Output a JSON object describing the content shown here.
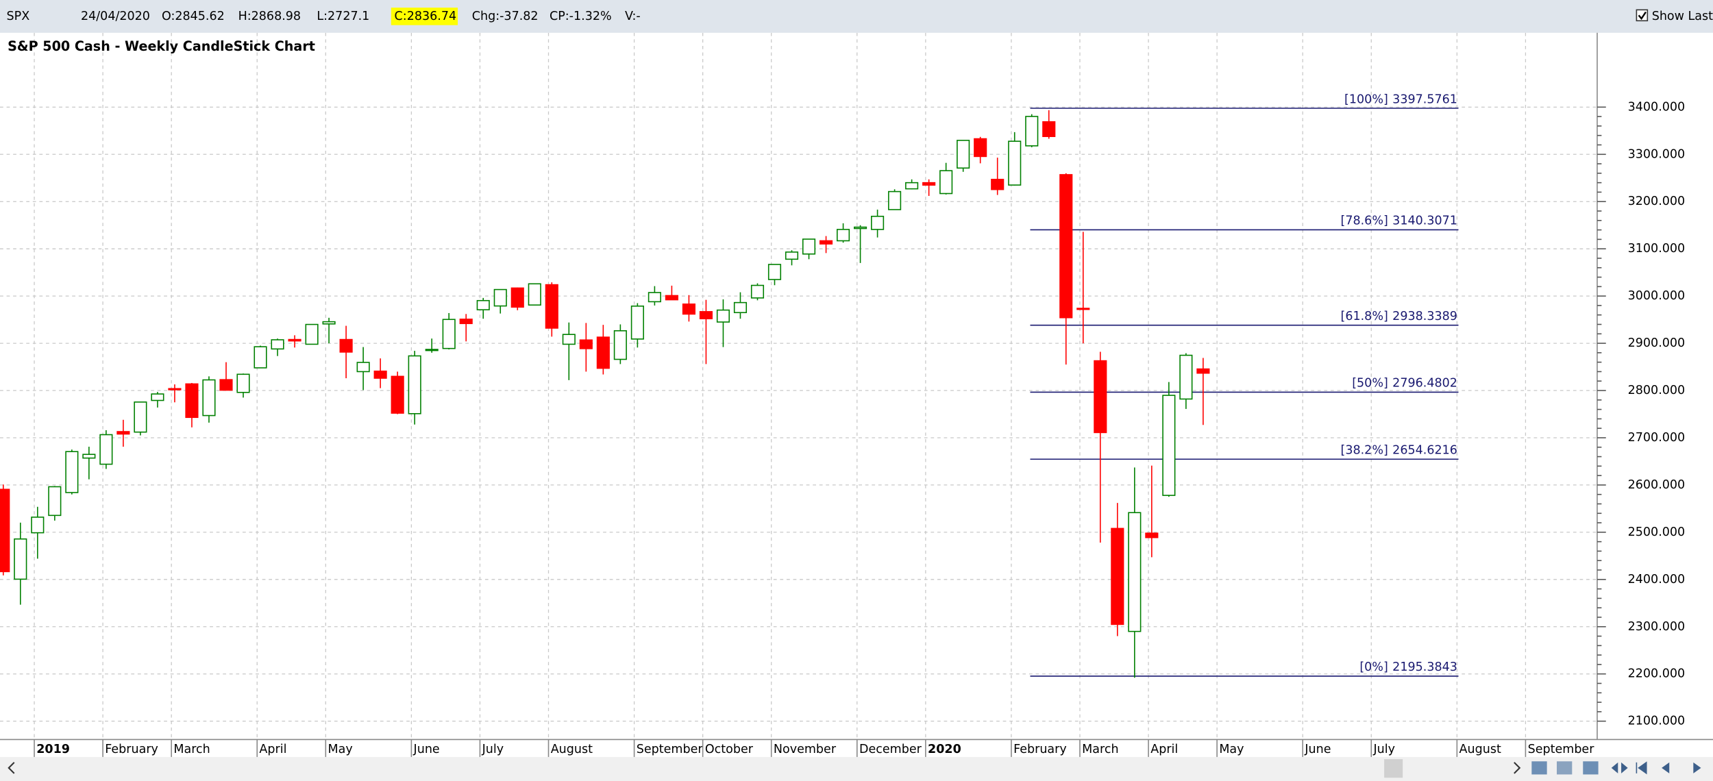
{
  "header": {
    "items": [
      "SPX",
      "24/04/2020",
      "O:2845.62",
      "H:2868.98",
      "L:2727.1",
      "C:2836.74",
      "Chg:-37.82",
      "CP:-1.32%",
      "V:-"
    ],
    "show_last": "Show Last"
  },
  "chart_data": {
    "type": "candlestick",
    "title": "S&P 500 Cash - Weekly CandleStick Chart",
    "categories": [
      null,
      null,
      "2019",
      null,
      null,
      null,
      "February",
      null,
      null,
      null,
      "March",
      null,
      null,
      null,
      null,
      "April",
      null,
      null,
      null,
      "May",
      null,
      null,
      null,
      null,
      "June",
      null,
      null,
      null,
      "July",
      null,
      null,
      null,
      "August",
      null,
      null,
      null,
      null,
      "September",
      null,
      null,
      null,
      "October",
      null,
      null,
      null,
      "November",
      null,
      null,
      null,
      null,
      "December",
      null,
      null,
      null,
      "2020",
      null,
      null,
      null,
      null,
      "February",
      null,
      null,
      null,
      "March",
      null,
      null,
      null,
      "April",
      null,
      null,
      null,
      "May",
      null,
      null,
      null,
      null,
      "June",
      null,
      null,
      null,
      "July",
      null,
      null,
      null,
      null,
      "August",
      null,
      null,
      null,
      "September",
      null,
      null,
      null,
      null
    ],
    "open": [
      2590.8,
      2400.6,
      2498.9,
      2535.6,
      2584,
      2657,
      2644,
      2713,
      2712,
      2779,
      2804,
      2814,
      2747,
      2823,
      2796,
      2848,
      2888,
      2908,
      2898,
      2941,
      2908,
      2840,
      2841,
      2830,
      2751,
      2885,
      2889,
      2951,
      2971,
      2979,
      3017,
      2981,
      3024,
      2898,
      2907,
      2913,
      2866,
      2909,
      2988,
      3001,
      2983,
      2967,
      2945,
      2965,
      2996,
      3035,
      3078,
      3089,
      3117,
      3117,
      3143,
      3141,
      3183,
      3227,
      3240,
      3217,
      3271,
      3333,
      3247,
      3235,
      3318,
      3369,
      3257,
      2974,
      2863,
      2508,
      2290,
      2498,
      2578,
      2782,
      2845.62,
      null,
      null,
      null,
      null,
      null,
      null,
      null,
      null,
      null,
      null,
      null,
      null,
      null,
      null,
      null,
      null,
      null,
      null,
      null,
      null,
      null,
      null,
      null
    ],
    "high": [
      2601,
      2520.3,
      2553.8,
      2597.8,
      2675,
      2681,
      2716,
      2738,
      2776,
      2797,
      2813,
      2816,
      2830,
      2860,
      2836,
      2895,
      2910,
      2917,
      2940,
      2954,
      2937,
      2892,
      2868,
      2840,
      2884,
      2910,
      2964,
      2962,
      2996,
      3014,
      3018,
      3027,
      3029,
      2944,
      2943,
      2939,
      2940,
      2985,
      3021,
      3022,
      3002,
      2992,
      2993,
      3008,
      3027,
      3067,
      3097,
      3121,
      3127,
      3154,
      3150,
      3183,
      3226,
      3247,
      3247,
      3282,
      3330,
      3337,
      3293,
      3347,
      3385,
      3393.5,
      3260,
      3136,
      2882,
      2562,
      2637,
      2641,
      2818,
      2879,
      2868.98,
      null,
      null,
      null,
      null,
      null,
      null,
      null,
      null,
      null,
      null,
      null,
      null,
      null,
      null,
      null,
      null,
      null,
      null,
      null,
      null,
      null,
      null,
      null
    ],
    "low": [
      2408.6,
      2346.6,
      2444,
      2524.6,
      2580,
      2612,
      2634,
      2681,
      2705,
      2764,
      2775,
      2722,
      2732,
      2800,
      2785,
      2848,
      2873,
      2891,
      2898,
      2900,
      2826,
      2801,
      2805,
      2750,
      2728,
      2880,
      2887,
      2904,
      2952,
      2963,
      2970,
      2980,
      2914,
      2822,
      2840,
      2834,
      2856,
      2891,
      2980,
      2993,
      2946,
      2856,
      2892,
      2952,
      2991,
      3023,
      3065,
      3078,
      3091,
      3113,
      3070,
      3124,
      3183,
      3226,
      3212,
      3215,
      3263,
      3281,
      3214,
      3234,
      3315,
      3333,
      2855,
      2900,
      2478,
      2280,
      2191.9,
      2447,
      2575,
      2761,
      2727.1,
      null,
      null,
      null,
      null,
      null,
      null,
      null,
      null,
      null,
      null,
      null,
      null,
      null,
      null,
      null,
      null,
      null,
      null,
      null,
      null,
      null,
      null,
      null
    ],
    "close": [
      2416.6,
      2485.7,
      2531.9,
      2596.3,
      2670.7,
      2664.8,
      2706.5,
      2707.9,
      2775.6,
      2792.7,
      2803.7,
      2743.1,
      2822.5,
      2800.7,
      2834.4,
      2892.7,
      2907.4,
      2905,
      2939.9,
      2945.6,
      2881.4,
      2859.5,
      2826.1,
      2752.1,
      2873.3,
      2887,
      2950.5,
      2941.8,
      2990.4,
      3013.8,
      2976.6,
      3025.9,
      2932.1,
      2918.7,
      2888.7,
      2847.1,
      2926.5,
      2978.7,
      3007.4,
      2992.1,
      2961.8,
      2952,
      2970.3,
      2986.2,
      3022.6,
      3066.9,
      3093.1,
      3120.5,
      3110.3,
      3141,
      3145.9,
      3168.8,
      3221.2,
      3240,
      3234.9,
      3265.4,
      3329.6,
      3295.5,
      3225.5,
      3327.7,
      3380.2,
      3337.8,
      2954.2,
      2972.4,
      2711,
      2304.9,
      2541.5,
      2488.7,
      2789.8,
      2874.6,
      2836.74,
      null,
      null,
      null,
      null,
      null,
      null,
      null,
      null,
      null,
      null,
      null,
      null,
      null,
      null,
      null,
      null,
      null,
      null,
      null,
      null,
      null,
      null,
      null
    ],
    "up_color": "#008000",
    "down_color": "#ff0000",
    "ylim": [
      2061.2,
      3488.0
    ],
    "yticks": [
      {
        "value": 2100,
        "label": "2100.000"
      },
      {
        "value": 2200,
        "label": "2200.000"
      },
      {
        "value": 2300,
        "label": "2300.000"
      },
      {
        "value": 2400,
        "label": "2400.000"
      },
      {
        "value": 2500,
        "label": "2500.000"
      },
      {
        "value": 2600,
        "label": "2600.000"
      },
      {
        "value": 2700,
        "label": "2700.000"
      },
      {
        "value": 2800,
        "label": "2800.000"
      },
      {
        "value": 2900,
        "label": "2900.000"
      },
      {
        "value": 3000,
        "label": "3000.000"
      },
      {
        "value": 3100,
        "label": "3100.000"
      },
      {
        "value": 3200,
        "label": "3200.000"
      },
      {
        "value": 3300,
        "label": "3300.000"
      },
      {
        "value": 3400,
        "label": "3400.000"
      }
    ],
    "grid": true,
    "fib_levels": [
      {
        "label": "[100%]",
        "value": 3397.5761
      },
      {
        "label": "[78.6%]",
        "value": 3140.3071
      },
      {
        "label": "[61.8%]",
        "value": 2938.3389
      },
      {
        "label": "[50%]",
        "value": 2796.4802
      },
      {
        "label": "[38.2%]",
        "value": 2654.6216
      },
      {
        "label": "[0%]",
        "value": 2195.3843
      }
    ],
    "fib_color": "#191970"
  }
}
